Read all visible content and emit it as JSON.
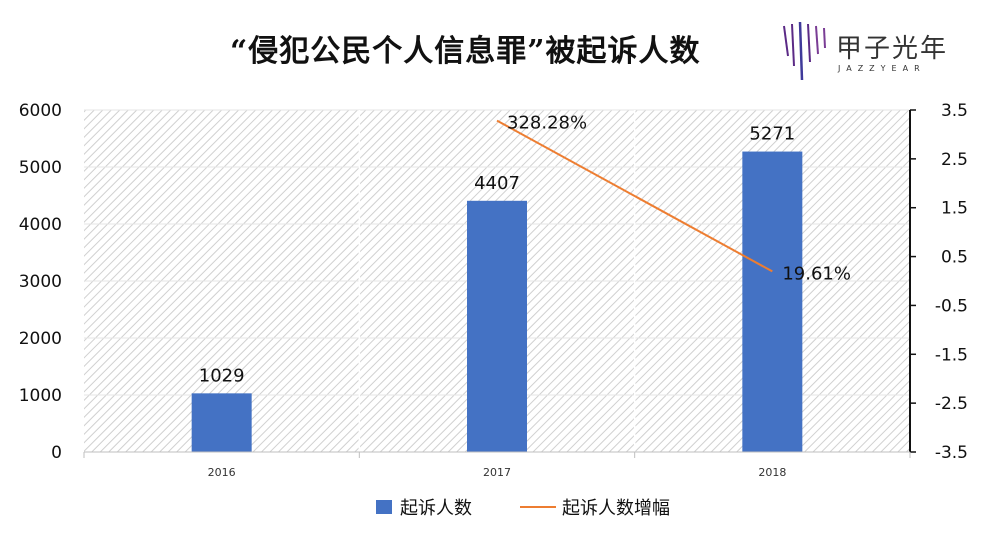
{
  "title": "“侵犯公民个人信息罪”被起诉人数",
  "logo": {
    "name": "甲子光年",
    "sub": "JAZZYEAR"
  },
  "colors": {
    "bar": "#4472C4",
    "line": "#ED7D31",
    "hatch": "#cfcfcf"
  },
  "chart_data": {
    "type": "bar",
    "categories": [
      "2016",
      "2017",
      "2018"
    ],
    "series": [
      {
        "name": "起诉人数",
        "type": "bar",
        "axis": "left",
        "values": [
          1029,
          4407,
          5271
        ],
        "labels": [
          "1029",
          "4407",
          "5271"
        ]
      },
      {
        "name": "起诉人数增幅",
        "type": "line",
        "axis": "right",
        "values": [
          null,
          3.2828,
          0.1961
        ],
        "labels": [
          "",
          "328.28%",
          "19.61%"
        ]
      }
    ],
    "y_left": {
      "range": [
        0,
        6000
      ],
      "ticks": [
        "0",
        "1000",
        "2000",
        "3000",
        "4000",
        "5000",
        "6000"
      ]
    },
    "y_right": {
      "range": [
        -3.5,
        3.5
      ],
      "ticks": [
        "-3.5",
        "-2.5",
        "-1.5",
        "-0.5",
        "0.5",
        "1.5",
        "2.5",
        "3.5"
      ]
    },
    "legend": "bottom",
    "grid": true
  }
}
